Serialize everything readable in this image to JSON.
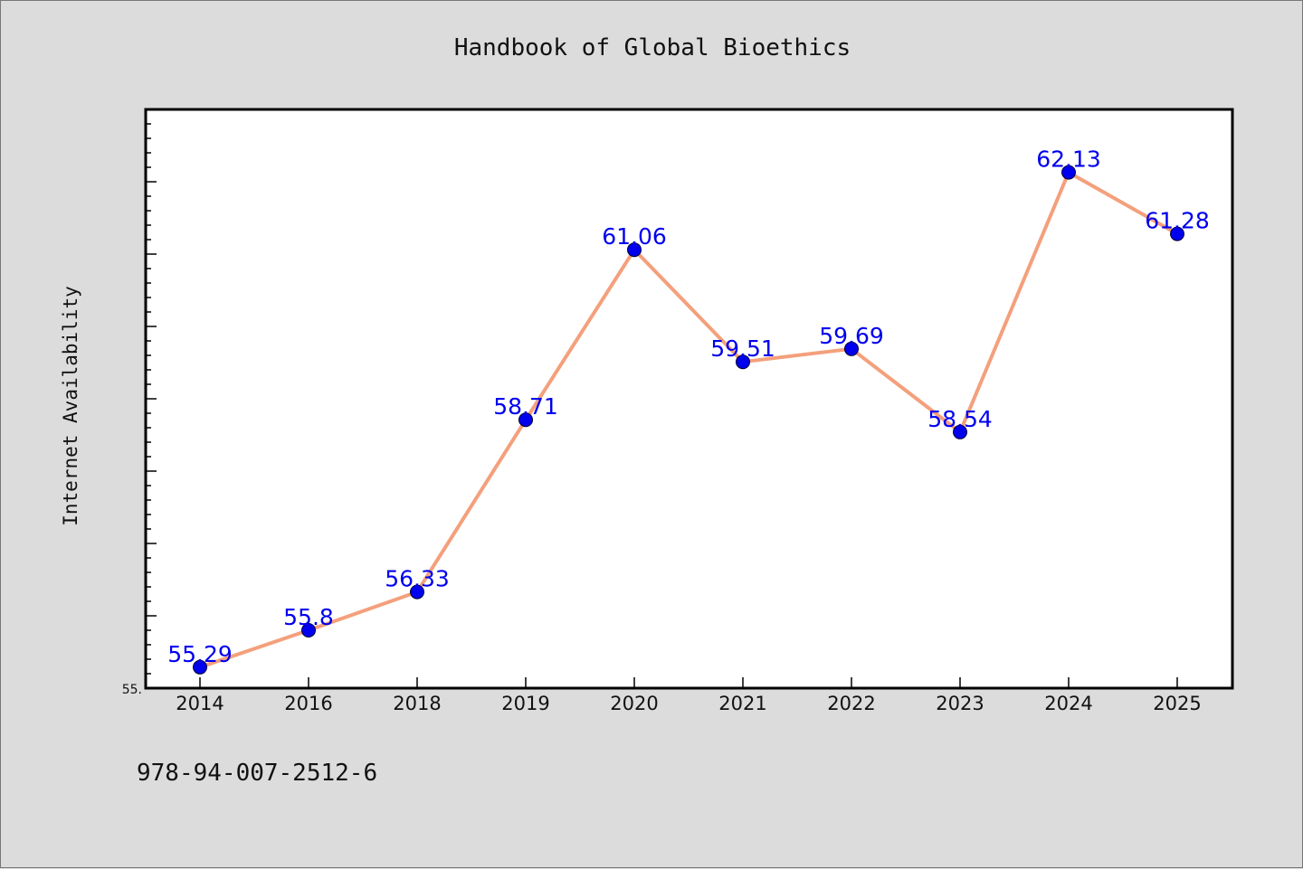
{
  "chart_data": {
    "type": "line",
    "title": "Handbook of Global Bioethics",
    "xlabel": "",
    "ylabel": "Internet Availability",
    "categories": [
      "2014",
      "2016",
      "2018",
      "2019",
      "2020",
      "2021",
      "2022",
      "2023",
      "2024",
      "2025"
    ],
    "values": [
      55.29,
      55.8,
      56.33,
      58.71,
      61.06,
      59.51,
      59.69,
      58.54,
      62.13,
      61.28
    ],
    "data_labels": [
      "55.29",
      "55.8",
      "56.33",
      "58.71",
      "61.06",
      "59.51",
      "59.69",
      "58.54",
      "62.13",
      "61.28"
    ],
    "ylim": [
      55.0,
      63.0
    ],
    "ytick_labels": [
      "55."
    ],
    "grid": false,
    "line_color": "#f4a07c",
    "marker_color": "#0000ee",
    "label_color": "#0000ee"
  },
  "footer": {
    "isbn": "978-94-007-2512-6"
  }
}
